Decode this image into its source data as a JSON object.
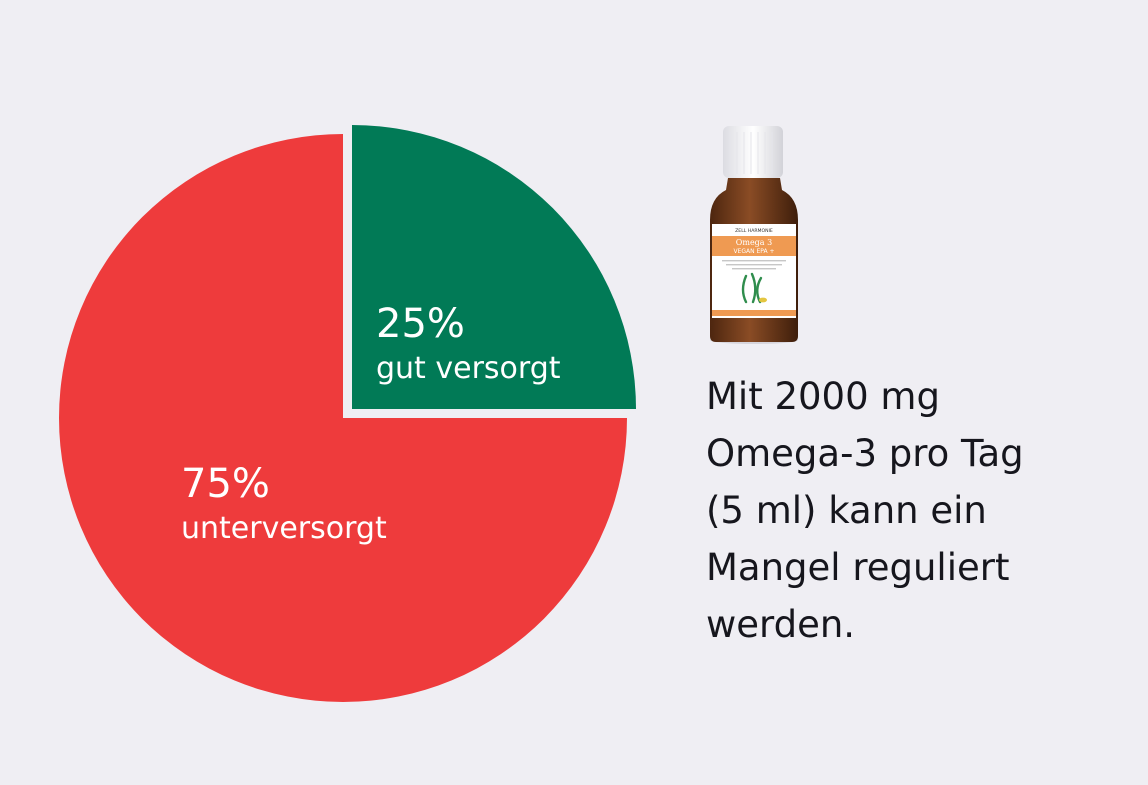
{
  "chart_data": {
    "type": "pie",
    "categories": [
      "gut versorgt",
      "unterversorgt"
    ],
    "values": [
      25,
      75
    ],
    "labels": [
      {
        "percent": "25%",
        "text": "gut versorgt"
      },
      {
        "percent": "75%",
        "text": "unterversorgt"
      }
    ],
    "colors": [
      "#017a56",
      "#ee3b3c"
    ],
    "explode": "first-slice",
    "title": "",
    "legend": "none"
  },
  "product": {
    "brand": "ZELL HARMONIE",
    "name": "Omega 3",
    "variant": "VEGAN EPA +",
    "icon": "algae-icon",
    "colors": {
      "cap": "#f4f4f6",
      "glass": "#6e3a1d",
      "label": "#ffffff",
      "band": "#ef9a52"
    }
  },
  "note": {
    "lines": [
      "Mit 2000 mg",
      "Omega-3 pro Tag",
      "(5 ml) kann ein",
      "Mangel reguliert",
      "werden."
    ]
  }
}
